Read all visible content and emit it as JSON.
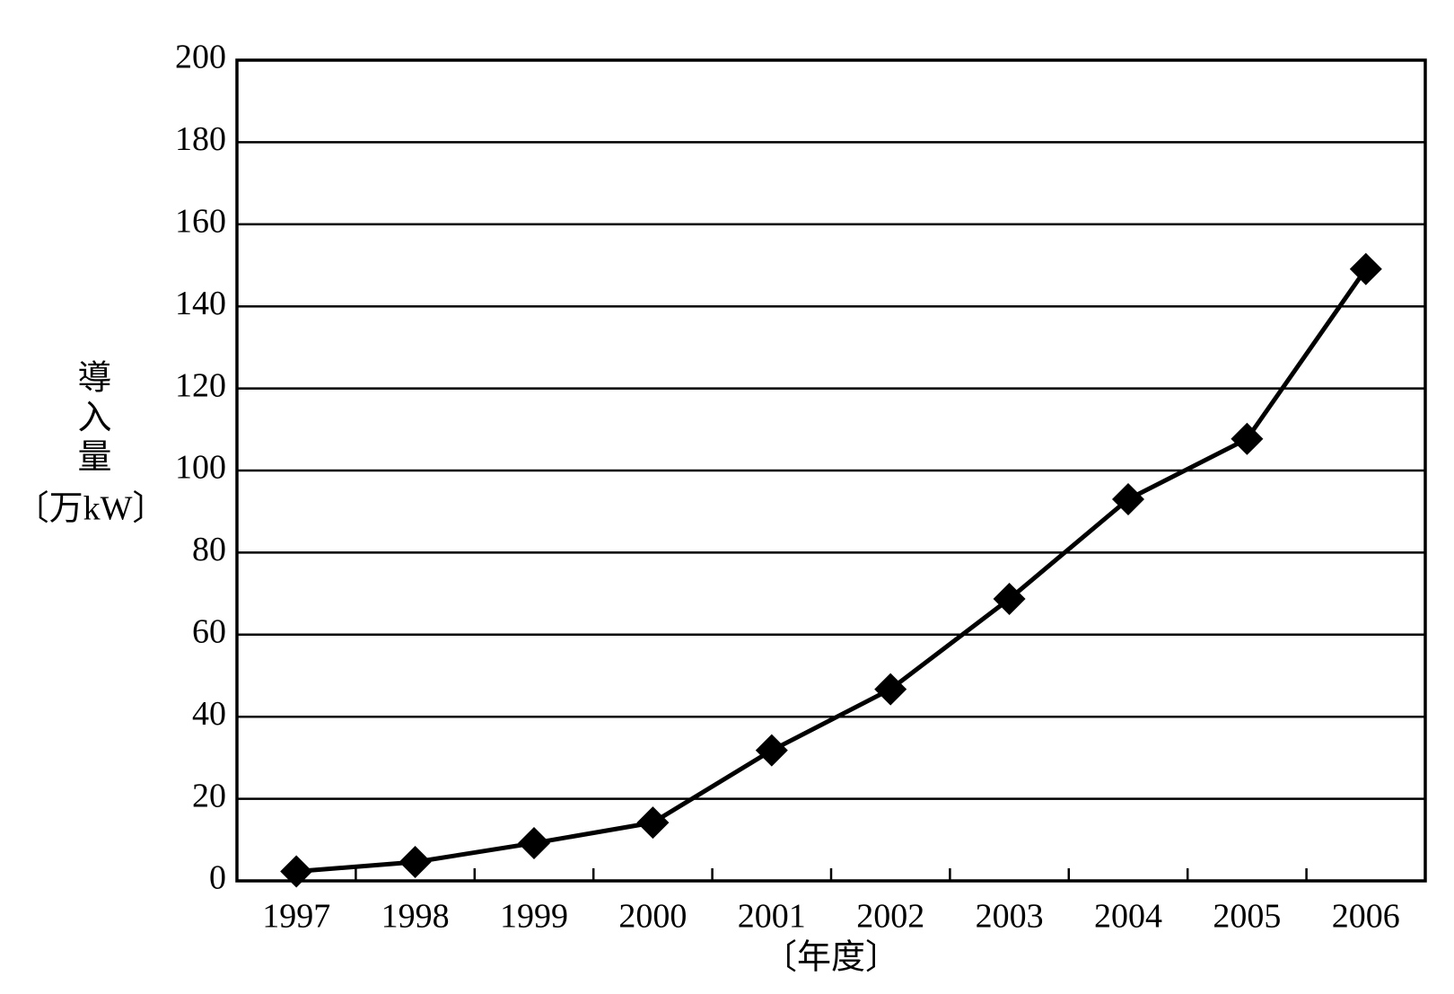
{
  "chart_data": {
    "type": "line",
    "y_label": "導入量",
    "y_unit": "〔万kW〕",
    "x_label": "〔年度〕",
    "categories": [
      "1997",
      "1998",
      "1999",
      "2000",
      "2001",
      "2002",
      "2003",
      "2004",
      "2005",
      "2006"
    ],
    "values": [
      2.3,
      4.6,
      9.2,
      14.2,
      31.8,
      46.7,
      68.7,
      93,
      107.7,
      149.1
    ],
    "color": "#000000",
    "ylim": [
      0,
      200
    ],
    "yticks": [
      0,
      20,
      40,
      60,
      80,
      100,
      120,
      140,
      160,
      180,
      200
    ],
    "grid": true
  }
}
